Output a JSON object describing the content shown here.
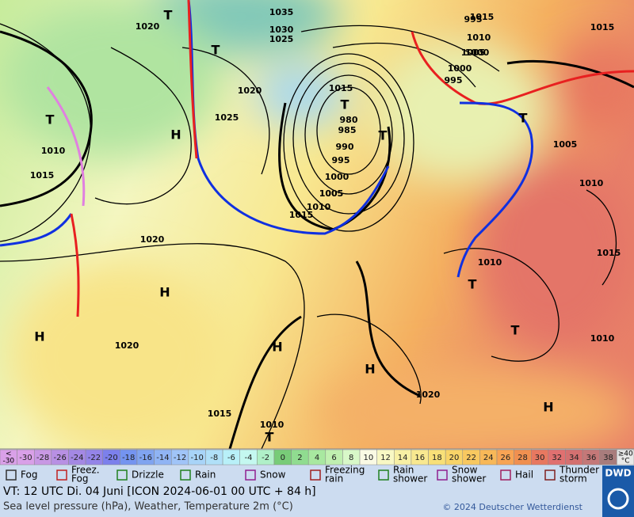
{
  "map": {
    "pressure_labels": [
      "1035",
      "1030",
      "1025",
      "1020",
      "1020",
      "1025",
      "1020",
      "1015",
      "1010",
      "1005",
      "1000",
      "995",
      "990",
      "985",
      "980",
      "995",
      "1000",
      "1005",
      "1010",
      "1015",
      "1015",
      "1010",
      "1005",
      "1000",
      "995",
      "1015",
      "1005",
      "1010",
      "1015",
      "1010",
      "1010",
      "1020",
      "1015",
      "1010",
      "1020",
      "1015"
    ],
    "centers": [
      "T",
      "T",
      "H",
      "T",
      "T",
      "H",
      "T",
      "H",
      "T",
      "T",
      "H",
      "H",
      "T",
      "T",
      "H"
    ]
  },
  "temperature_scale": {
    "low_label": [
      "<",
      "-30"
    ],
    "high_label": [
      "≥40",
      "°C"
    ],
    "steps": [
      {
        "value": -30,
        "color": "#d9a0e8"
      },
      {
        "value": -28,
        "color": "#c898e4"
      },
      {
        "value": -26,
        "color": "#b890e4"
      },
      {
        "value": -24,
        "color": "#a488e4"
      },
      {
        "value": -22,
        "color": "#9484e8"
      },
      {
        "value": -20,
        "color": "#7c80ec"
      },
      {
        "value": -18,
        "color": "#7494f0"
      },
      {
        "value": -16,
        "color": "#80a4f0"
      },
      {
        "value": -14,
        "color": "#90b4f4"
      },
      {
        "value": -12,
        "color": "#a0c4f8"
      },
      {
        "value": -10,
        "color": "#a8d4f8"
      },
      {
        "value": -8,
        "color": "#b0e0f8"
      },
      {
        "value": -6,
        "color": "#b8f0f8"
      },
      {
        "value": -4,
        "color": "#c4f8f0"
      },
      {
        "value": -2,
        "color": "#b0f0c8"
      },
      {
        "value": 0,
        "color": "#78cc78"
      },
      {
        "value": 2,
        "color": "#90dc90"
      },
      {
        "value": 4,
        "color": "#a8e8a0"
      },
      {
        "value": 6,
        "color": "#c0f0b0"
      },
      {
        "value": 8,
        "color": "#d8f8c8"
      },
      {
        "value": 10,
        "color": "#fafae4"
      },
      {
        "value": 12,
        "color": "#f8f8c4"
      },
      {
        "value": 14,
        "color": "#f8f0a4"
      },
      {
        "value": 16,
        "color": "#f8e890"
      },
      {
        "value": 18,
        "color": "#f8e078"
      },
      {
        "value": 20,
        "color": "#f8d468"
      },
      {
        "value": 22,
        "color": "#f8c860"
      },
      {
        "value": 24,
        "color": "#f8b858"
      },
      {
        "value": 26,
        "color": "#f8a454"
      },
      {
        "value": 28,
        "color": "#f09050"
      },
      {
        "value": 30,
        "color": "#e87860"
      },
      {
        "value": 32,
        "color": "#e07070"
      },
      {
        "value": 34,
        "color": "#d47070"
      },
      {
        "value": 36,
        "color": "#c47878"
      },
      {
        "value": 38,
        "color": "#a87c7c"
      }
    ]
  },
  "weather_legend": [
    [
      "Fog"
    ],
    [
      "Freez.",
      "Fog"
    ],
    [
      "Drizzle"
    ],
    [
      "Rain"
    ],
    [
      "Snow"
    ],
    [
      "Freezing",
      "rain"
    ],
    [
      "Rain",
      "shower"
    ],
    [
      "Snow",
      "shower"
    ],
    [
      "Hail"
    ],
    [
      "Thunder",
      "storm"
    ]
  ],
  "footer": {
    "valid_time": "VT: 12 UTC Di.  04 Juni [ICON 2024-06-01  00 UTC + 84 h]",
    "description": "Sea level pressure (hPa), Weather, Temperature 2m (°C)",
    "copyright": "© 2024 Deutscher Wetterdienst",
    "logo": "DWD"
  }
}
